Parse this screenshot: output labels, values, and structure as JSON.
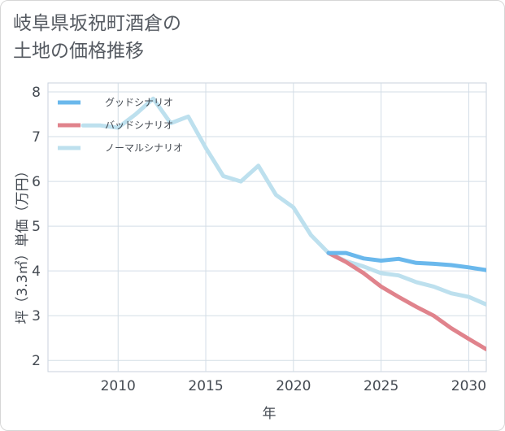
{
  "title_line1": "岐阜県坂祝町酒倉の",
  "title_line2": "土地の価格推移",
  "chart_data": {
    "type": "line",
    "xlabel": "年",
    "ylabel": "坪（3.3㎡）単価（万円）",
    "xlim": [
      2006,
      2031
    ],
    "ylim": [
      1.75,
      8.2
    ],
    "xticks": [
      2010,
      2015,
      2020,
      2025,
      2030
    ],
    "yticks": [
      2,
      3,
      4,
      5,
      6,
      7,
      8
    ],
    "grid": true,
    "legend_position": "top-left",
    "series": [
      {
        "name": "ノーマルシナリオ",
        "color": "#bde0ee",
        "x": [
          2008,
          2009,
          2010,
          2011,
          2012,
          2013,
          2014,
          2015,
          2016,
          2017,
          2018,
          2019,
          2020,
          2021,
          2022,
          2023,
          2024,
          2025,
          2026,
          2027,
          2028,
          2029,
          2030,
          2031
        ],
        "values": [
          7.25,
          7.25,
          7.2,
          7.5,
          7.85,
          7.3,
          7.45,
          6.75,
          6.12,
          6.0,
          6.35,
          5.7,
          5.42,
          4.8,
          4.4,
          4.22,
          4.1,
          3.95,
          3.9,
          3.75,
          3.65,
          3.5,
          3.42,
          3.25
        ]
      },
      {
        "name": "バッドシナリオ",
        "color": "#e0838c",
        "x": [
          2022,
          2023,
          2024,
          2025,
          2026,
          2027,
          2028,
          2029,
          2030,
          2031
        ],
        "values": [
          4.4,
          4.2,
          3.95,
          3.65,
          3.42,
          3.2,
          3.0,
          2.72,
          2.48,
          2.25
        ]
      },
      {
        "name": "グッドシナリオ",
        "color": "#6ab8ec",
        "x": [
          2022,
          2023,
          2024,
          2025,
          2026,
          2027,
          2028,
          2029,
          2030,
          2031
        ],
        "values": [
          4.4,
          4.4,
          4.28,
          4.23,
          4.27,
          4.18,
          4.16,
          4.13,
          4.08,
          4.02
        ]
      }
    ],
    "legend": [
      {
        "name": "グッドシナリオ",
        "color": "#6ab8ec"
      },
      {
        "name": "バッドシナリオ",
        "color": "#e0838c"
      },
      {
        "name": "ノーマルシナリオ",
        "color": "#bde0ee"
      }
    ]
  }
}
